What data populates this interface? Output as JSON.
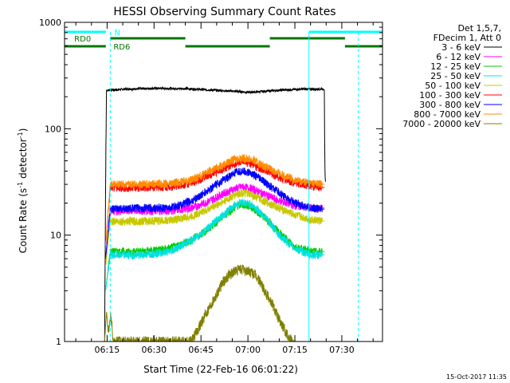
{
  "chart_data": {
    "type": "line",
    "title": "HESSI Observing Summary Count Rates",
    "xlabel": "Start Time (22-Feb-16 06:01:22)",
    "ylabel_main": "Count Rate (s",
    "ylabel_sup1": "-1",
    "ylabel_mid": " detector",
    "ylabel_sup2": "-1",
    "ylabel_end": ")",
    "x_ticks": [
      "06:15",
      "06:30",
      "06:45",
      "07:00",
      "07:15",
      "07:30"
    ],
    "x_tick_minutes": [
      15,
      30,
      45,
      60,
      75,
      90
    ],
    "x_range_minutes": [
      1.4,
      103
    ],
    "y_scale": "log",
    "y_range": [
      1,
      1000
    ],
    "y_ticks": [
      "1",
      "10",
      "100",
      "1000"
    ],
    "y_tick_values": [
      1,
      10,
      100,
      1000
    ],
    "grid": false,
    "legend_placement": "right",
    "legend_header": [
      "Det 1,5,7,",
      "FDecim 1, Att 0"
    ],
    "series": [
      {
        "name": "3 - 6 keV",
        "color": "#000000",
        "points": [
          [
            14.2,
            1
          ],
          [
            14.6,
            60
          ],
          [
            14.8,
            230
          ],
          [
            20,
            235
          ],
          [
            30,
            240
          ],
          [
            40,
            238
          ],
          [
            47,
            232
          ],
          [
            52,
            228
          ],
          [
            57,
            224
          ],
          [
            60,
            220
          ],
          [
            63,
            222
          ],
          [
            67,
            227
          ],
          [
            72,
            232
          ],
          [
            78,
            236
          ],
          [
            84,
            236
          ],
          [
            84.4,
            232
          ],
          [
            84.6,
            40
          ],
          [
            84.8,
            30
          ]
        ]
      },
      {
        "name": "6 - 12 keV",
        "color": "#ff00ff",
        "points": [
          [
            14.5,
            6
          ],
          [
            16,
            17
          ],
          [
            25,
            17
          ],
          [
            35,
            17
          ],
          [
            42,
            18
          ],
          [
            47,
            20.5
          ],
          [
            52,
            24.5
          ],
          [
            56,
            27.5
          ],
          [
            58,
            28.5
          ],
          [
            61,
            27.5
          ],
          [
            65,
            24.5
          ],
          [
            70,
            21
          ],
          [
            75,
            19
          ],
          [
            80,
            18
          ],
          [
            84.5,
            18
          ]
        ]
      },
      {
        "name": "12 - 25 keV",
        "color": "#00cc00",
        "points": [
          [
            14.5,
            3
          ],
          [
            16,
            7
          ],
          [
            25,
            7
          ],
          [
            35,
            7.5
          ],
          [
            42,
            9
          ],
          [
            47,
            11.2
          ],
          [
            52,
            15
          ],
          [
            56,
            18.5
          ],
          [
            58,
            19.5
          ],
          [
            61,
            18.5
          ],
          [
            65,
            15
          ],
          [
            70,
            10.5
          ],
          [
            75,
            7.8
          ],
          [
            80,
            7
          ],
          [
            84.5,
            7
          ]
        ]
      },
      {
        "name": "25 - 50 keV",
        "color": "#00e0e0",
        "points": [
          [
            14.5,
            3
          ],
          [
            16,
            6.5
          ],
          [
            25,
            6.5
          ],
          [
            35,
            7
          ],
          [
            42,
            9
          ],
          [
            47,
            11.5
          ],
          [
            52,
            15.5
          ],
          [
            56,
            19.5
          ],
          [
            58,
            20.5
          ],
          [
            61,
            19.5
          ],
          [
            65,
            15.5
          ],
          [
            70,
            10
          ],
          [
            75,
            7.5
          ],
          [
            80,
            6.5
          ],
          [
            84.5,
            6.5
          ]
        ]
      },
      {
        "name": "50 - 100 keV",
        "color": "#c8c800",
        "points": [
          [
            14.5,
            5
          ],
          [
            16,
            13.5
          ],
          [
            25,
            13.5
          ],
          [
            35,
            13.8
          ],
          [
            42,
            15
          ],
          [
            47,
            17.5
          ],
          [
            52,
            20.5
          ],
          [
            56,
            24
          ],
          [
            58,
            25
          ],
          [
            61,
            24
          ],
          [
            65,
            21
          ],
          [
            70,
            18
          ],
          [
            75,
            15.5
          ],
          [
            80,
            14
          ],
          [
            84.5,
            13.5
          ]
        ]
      },
      {
        "name": "100 - 300 keV",
        "color": "#ff0000",
        "points": [
          [
            14.5,
            8
          ],
          [
            16,
            28
          ],
          [
            25,
            28
          ],
          [
            35,
            28.5
          ],
          [
            42,
            31
          ],
          [
            47,
            36
          ],
          [
            52,
            42
          ],
          [
            56,
            47
          ],
          [
            58,
            49
          ],
          [
            61,
            47
          ],
          [
            65,
            41
          ],
          [
            70,
            35
          ],
          [
            75,
            31
          ],
          [
            80,
            29
          ],
          [
            84.5,
            28
          ]
        ]
      },
      {
        "name": "300 - 800 keV",
        "color": "#0000ff",
        "points": [
          [
            14.5,
            6
          ],
          [
            16,
            17.5
          ],
          [
            25,
            18
          ],
          [
            35,
            18
          ],
          [
            42,
            21
          ],
          [
            47,
            26
          ],
          [
            52,
            33
          ],
          [
            56,
            38.5
          ],
          [
            58,
            40
          ],
          [
            61,
            38.5
          ],
          [
            65,
            32
          ],
          [
            70,
            25
          ],
          [
            75,
            20
          ],
          [
            80,
            18
          ],
          [
            84.5,
            17.5
          ]
        ]
      },
      {
        "name": "800 - 7000 keV",
        "color": "#ff8c00",
        "points": [
          [
            14.5,
            8
          ],
          [
            16,
            30
          ],
          [
            25,
            30
          ],
          [
            35,
            30.5
          ],
          [
            42,
            33
          ],
          [
            47,
            39
          ],
          [
            52,
            46
          ],
          [
            56,
            52
          ],
          [
            58,
            53
          ],
          [
            61,
            52
          ],
          [
            65,
            45
          ],
          [
            70,
            38
          ],
          [
            75,
            33
          ],
          [
            80,
            31
          ],
          [
            84.5,
            30
          ]
        ]
      },
      {
        "name": "7000 - 20000 keV",
        "color": "#808000",
        "points": [
          [
            14.2,
            1
          ],
          [
            14.8,
            1.9
          ],
          [
            15.5,
            1.2
          ],
          [
            16.2,
            1.8
          ],
          [
            17,
            1
          ],
          [
            42,
            1
          ],
          [
            45,
            1.5
          ],
          [
            48,
            2.2
          ],
          [
            50,
            2.8
          ],
          [
            52,
            3.6
          ],
          [
            54,
            4.3
          ],
          [
            56,
            4.6
          ],
          [
            58,
            4.8
          ],
          [
            60,
            4.6
          ],
          [
            62,
            4.3
          ],
          [
            64,
            3.6
          ],
          [
            66,
            2.8
          ],
          [
            68,
            2.2
          ],
          [
            70,
            1.6
          ],
          [
            73,
            1.1
          ],
          [
            75,
            1
          ]
        ]
      }
    ],
    "annotations": [
      "N",
      "RD0",
      "RD6"
    ],
    "timestamp": "15-Oct-2017 11:35"
  }
}
